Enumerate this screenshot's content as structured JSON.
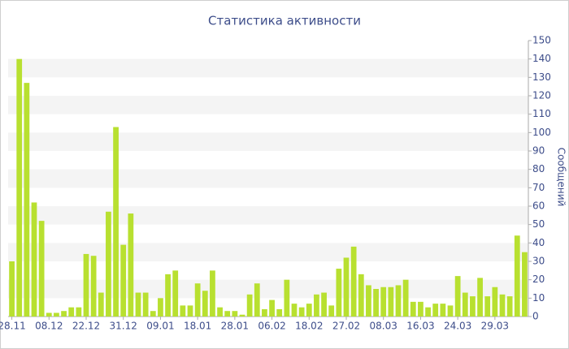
{
  "chart_data": {
    "type": "bar",
    "title": "Статистика активности",
    "y_label": "Сообщений",
    "categories": [
      "28.11",
      null,
      null,
      null,
      null,
      "08.12",
      null,
      null,
      null,
      null,
      "22.12",
      null,
      null,
      null,
      null,
      "31.12",
      null,
      null,
      null,
      null,
      "09.01",
      null,
      null,
      null,
      null,
      "18.01",
      null,
      null,
      null,
      null,
      "28.01",
      null,
      null,
      null,
      null,
      "06.02",
      null,
      null,
      null,
      null,
      "18.02",
      null,
      null,
      null,
      null,
      "27.02",
      null,
      null,
      null,
      null,
      "08.03",
      null,
      null,
      null,
      null,
      "16.03",
      null,
      null,
      null,
      null,
      "24.03",
      null,
      null,
      null,
      null,
      "29.03",
      null,
      null,
      null,
      null
    ],
    "values": [
      30,
      140,
      127,
      62,
      52,
      2,
      2,
      3,
      5,
      5,
      34,
      33,
      13,
      57,
      103,
      39,
      56,
      13,
      13,
      3,
      10,
      23,
      25,
      6,
      6,
      18,
      14,
      25,
      5,
      3,
      3,
      1,
      12,
      18,
      4,
      9,
      4,
      20,
      7,
      5,
      7,
      12,
      13,
      6,
      26,
      32,
      38,
      23,
      17,
      15,
      16,
      16,
      17,
      20,
      8,
      8,
      5,
      7,
      7,
      6,
      22,
      13,
      11,
      21,
      11,
      16,
      12,
      11,
      44,
      35
    ],
    "color": "#b8e030",
    "ylim": [
      0,
      150
    ],
    "yticks": [
      0,
      10,
      20,
      30,
      40,
      50,
      60,
      70,
      80,
      90,
      100,
      110,
      120,
      130,
      140,
      150
    ],
    "grid": true,
    "y_axis_side": "right"
  }
}
